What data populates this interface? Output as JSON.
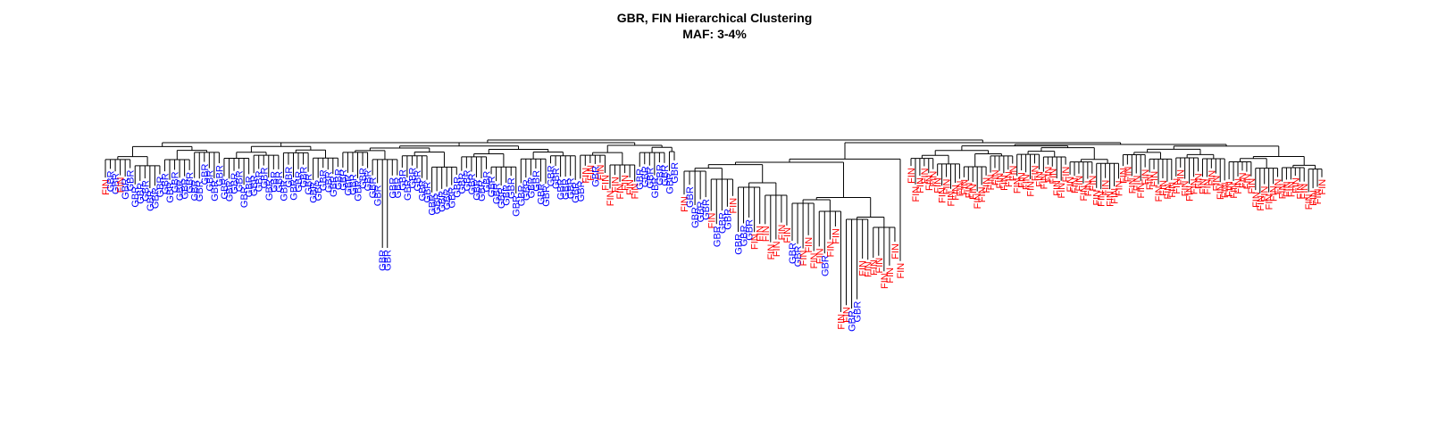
{
  "chart_data": {
    "type": "dendrogram",
    "title": "GBR, FIN Hierarchical Clustering",
    "subtitle": "MAF: 3-4%",
    "xlabel": "",
    "ylabel": "",
    "axes_shown": false,
    "grid": false,
    "legend": "none",
    "colors": {
      "GBR": "#0000ff",
      "FIN": "#ff0000",
      "branch": "#000000"
    },
    "clusters": [
      {
        "name": "left",
        "labels": [
          "FIN",
          "GBR",
          "GBR",
          "FIN",
          "GBR",
          "GBR",
          "GBR",
          "GBR",
          "GBR",
          "GBR",
          "GBR",
          "GBR",
          "GBR",
          "GBR",
          "GBR",
          "GBR",
          "GBR",
          "GBR",
          "GBR",
          "GBR",
          "GBR",
          "GBR",
          "GBR",
          "GBR",
          "GBR",
          "GBR",
          "GBR",
          "GBR",
          "GBR",
          "GBR",
          "GBR",
          "GBR",
          "GBR",
          "GBR",
          "GBR",
          "GBR",
          "GBR",
          "GBR",
          "GBR",
          "GBR",
          "GBR",
          "GBR",
          "GBR",
          "GBR",
          "GBR",
          "GBR",
          "GBR",
          "GBR",
          "GBR",
          "GBR",
          "GBR",
          "GBR",
          "GBR",
          "GBR",
          "GBR",
          "GBR",
          "GBR",
          "GBR",
          "GBR",
          "GBR",
          "GBR",
          "GBR",
          "GBR",
          "GBR",
          "GBR",
          "GBR",
          "GBR",
          "GBR",
          "GBR",
          "GBR",
          "GBR",
          "GBR",
          "GBR",
          "GBR",
          "GBR",
          "GBR",
          "GBR",
          "GBR",
          "GBR",
          "GBR",
          "GBR",
          "GBR",
          "GBR",
          "GBR",
          "GBR",
          "GBR",
          "GBR",
          "GBR",
          "GBR",
          "GBR",
          "GBR",
          "GBR",
          "GBR",
          "GBR",
          "GBR",
          "GBR",
          "GBR",
          "FIN",
          "FIN",
          "GBR",
          "FIN",
          "FIN",
          "FIN",
          "FIN",
          "FIN",
          "FIN",
          "FIN",
          "FIN",
          "GBR",
          "GBR",
          "GBR",
          "GBR",
          "GBR",
          "GBR",
          "GBR",
          "GBR"
        ]
      },
      {
        "name": "middle",
        "labels": [
          "FIN",
          "GBR",
          "GBR",
          "GBR",
          "GBR",
          "FIN",
          "GBR",
          "GBR",
          "GBR",
          "FIN",
          "GBR",
          "GBR",
          "GBR",
          "FIN",
          "FIN",
          "FIN",
          "FIN",
          "FIN",
          "FIN",
          "FIN",
          "GBR",
          "GBR",
          "FIN",
          "FIN",
          "FIN",
          "FIN",
          "GBR",
          "FIN",
          "FIN",
          "FIN",
          "FIN",
          "GBR",
          "GBR",
          "FIN",
          "FIN",
          "FIN",
          "FIN",
          "FIN",
          "FIN",
          "FIN",
          "FIN"
        ]
      },
      {
        "name": "right",
        "labels": [
          "FIN",
          "FIN",
          "FIN",
          "FIN",
          "FIN",
          "FIN",
          "FIN",
          "FIN",
          "FIN",
          "FIN",
          "FIN",
          "FIN",
          "FIN",
          "FIN",
          "FIN",
          "FIN",
          "FIN",
          "FIN",
          "FIN",
          "FIN",
          "FIN",
          "FIN",
          "FIN",
          "FIN",
          "FIN",
          "FIN",
          "FIN",
          "FIN",
          "FIN",
          "FIN",
          "FIN",
          "FIN",
          "FIN",
          "FIN",
          "FIN",
          "FIN",
          "FIN",
          "FIN",
          "FIN",
          "FIN",
          "FIN",
          "FIN",
          "FIN",
          "FIN",
          "FIN",
          "FIN",
          "FIN",
          "FIN",
          "FIN",
          "FIN",
          "FIN",
          "FIN",
          "FIN",
          "FIN",
          "FIN",
          "FIN",
          "FIN",
          "FIN",
          "FIN",
          "FIN",
          "FIN",
          "FIN",
          "FIN",
          "FIN",
          "FIN",
          "FIN",
          "FIN",
          "FIN",
          "FIN",
          "FIN",
          "FIN",
          "FIN",
          "FIN",
          "FIN",
          "FIN",
          "FIN",
          "FIN",
          "FIN",
          "FIN",
          "FIN",
          "FIN",
          "FIN",
          "FIN",
          "FIN",
          "FIN",
          "FIN",
          "FIN",
          "FIN",
          "FIN",
          "FIN",
          "FIN",
          "FIN",
          "FIN",
          "FIN"
        ]
      }
    ]
  }
}
